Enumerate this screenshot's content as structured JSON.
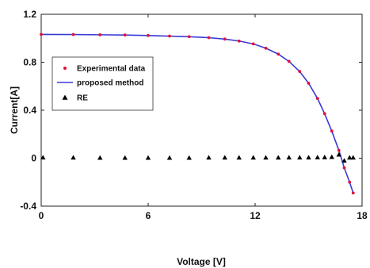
{
  "chart_data": {
    "type": "line",
    "xlabel": "Voltage [V]",
    "ylabel": "Current[A]",
    "xlim": [
      0,
      18
    ],
    "ylim": [
      -0.4,
      1.2
    ],
    "xticks": [
      0,
      6,
      12,
      18
    ],
    "yticks": [
      -0.4,
      0,
      0.4,
      0.8,
      1.2
    ],
    "xtick_labels": [
      "0",
      "6",
      "12",
      "18"
    ],
    "ytick_labels": [
      "-0.4",
      "0",
      "0.4",
      "0.8",
      "1.2"
    ],
    "grid": false,
    "legend_position": "upper-left",
    "series": [
      {
        "name": "Experimental data",
        "kind": "markers",
        "marker": "dot",
        "color": "#e0103a",
        "x": [
          0.0,
          1.8,
          3.3,
          4.7,
          6.0,
          7.2,
          8.3,
          9.4,
          10.3,
          11.1,
          11.9,
          12.6,
          13.3,
          13.9,
          14.5,
          15.0,
          15.5,
          15.9,
          16.3,
          16.7,
          17.0,
          17.3,
          17.5
        ],
        "y": [
          1.032,
          1.031,
          1.029,
          1.027,
          1.023,
          1.018,
          1.013,
          1.005,
          0.993,
          0.977,
          0.953,
          0.917,
          0.868,
          0.807,
          0.723,
          0.625,
          0.498,
          0.371,
          0.226,
          0.065,
          -0.08,
          -0.2,
          -0.29
        ]
      },
      {
        "name": "proposed method",
        "kind": "line",
        "color": "#3a3ad6",
        "x": [
          0.0,
          1.8,
          3.3,
          4.7,
          6.0,
          7.2,
          8.3,
          9.4,
          10.3,
          11.1,
          11.9,
          12.6,
          13.3,
          13.9,
          14.5,
          15.0,
          15.5,
          15.9,
          16.3,
          16.7,
          17.0,
          17.3,
          17.5
        ],
        "y": [
          1.032,
          1.031,
          1.029,
          1.027,
          1.023,
          1.018,
          1.013,
          1.005,
          0.993,
          0.977,
          0.953,
          0.917,
          0.868,
          0.807,
          0.723,
          0.625,
          0.498,
          0.371,
          0.226,
          0.065,
          -0.08,
          -0.2,
          -0.29
        ]
      },
      {
        "name": "RE",
        "kind": "markers",
        "marker": "triangle",
        "color": "#000000",
        "x": [
          0.1,
          1.8,
          3.3,
          4.7,
          6.0,
          7.2,
          8.3,
          9.4,
          10.3,
          11.1,
          11.9,
          12.6,
          13.3,
          13.9,
          14.5,
          15.0,
          15.5,
          15.9,
          16.3,
          16.7,
          17.0,
          17.3,
          17.5
        ],
        "y": [
          0.006,
          0.005,
          0.004,
          0.004,
          0.004,
          0.004,
          0.004,
          0.005,
          0.005,
          0.005,
          0.005,
          0.005,
          0.005,
          0.006,
          0.006,
          0.006,
          0.007,
          0.008,
          0.01,
          0.03,
          -0.02,
          0.005,
          0.005
        ]
      }
    ]
  }
}
